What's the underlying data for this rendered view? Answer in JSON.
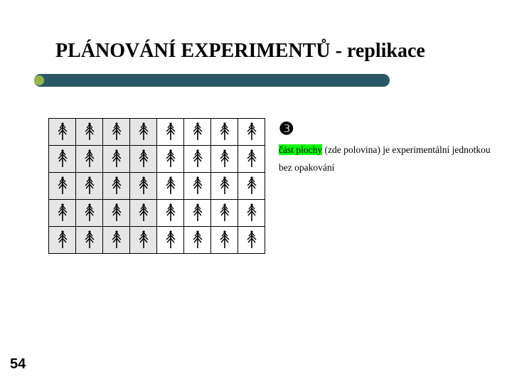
{
  "title": "PLÁNOVÁNÍ EXPERIMENTŮ - replikace",
  "page_number": "54",
  "circled_number": "❸",
  "line1_hl": "část plochy",
  "line1_rest": " (zde polovina) je experimentální jednotkou",
  "line2": "bez opakování",
  "grid": {
    "rows": 5,
    "cols": 8,
    "split_col": 4,
    "left_bg": "#e6e6e6",
    "right_bg": "#ffffff",
    "cell_size": 38,
    "border_color": "#000000"
  },
  "tree_svg": {
    "trunk_color": "#000000",
    "foliage_color": "#000000"
  },
  "colors": {
    "title_bar": "#2a5866",
    "bullet": "#94b54a",
    "background": "#ffffff",
    "highlight": "#00ff00"
  },
  "typography": {
    "title_size": 28,
    "body_size": 14,
    "pagenum_size": 20
  }
}
